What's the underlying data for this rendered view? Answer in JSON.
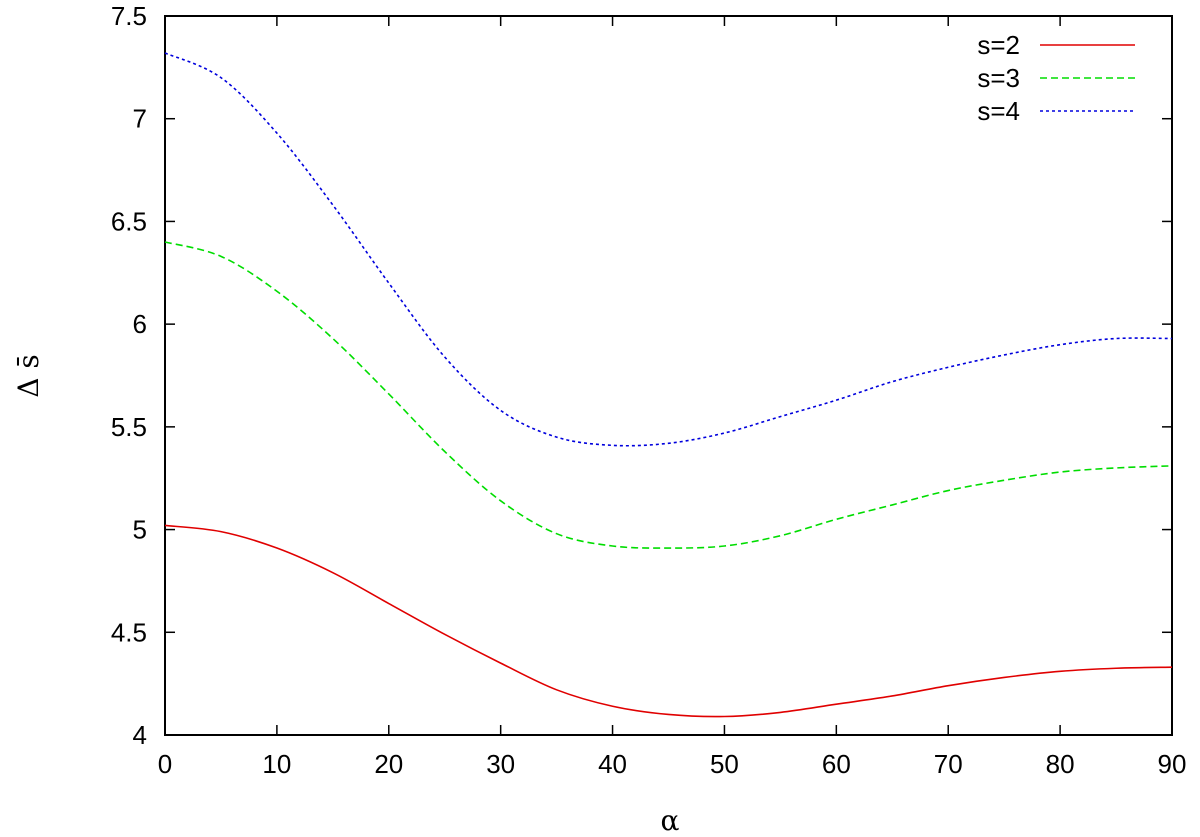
{
  "chart_data": {
    "type": "line",
    "title": "",
    "xlabel": "α",
    "ylabel": "Δ s̄",
    "xlim": [
      0,
      90
    ],
    "ylim": [
      4,
      7.5
    ],
    "xticks": [
      0,
      10,
      20,
      30,
      40,
      50,
      60,
      70,
      80,
      90
    ],
    "xtick_labels": [
      "0",
      "10",
      "20",
      "30",
      "40",
      "50",
      "60",
      "70",
      "80",
      "90"
    ],
    "yticks": [
      4,
      4.5,
      5,
      5.5,
      6,
      6.5,
      7,
      7.5
    ],
    "ytick_labels": [
      "4",
      "4.5",
      "5",
      "5.5",
      "6",
      "6.5",
      "7",
      "7.5"
    ],
    "grid": false,
    "legend_position": "top-right",
    "x": [
      0,
      5,
      10,
      15,
      20,
      25,
      30,
      35,
      40,
      45,
      50,
      55,
      60,
      65,
      70,
      75,
      80,
      85,
      90
    ],
    "series": [
      {
        "name": "s=2",
        "color": "#e00000",
        "dash": "solid",
        "values": [
          5.02,
          4.99,
          4.91,
          4.79,
          4.64,
          4.49,
          4.35,
          4.22,
          4.14,
          4.1,
          4.09,
          4.11,
          4.15,
          4.19,
          4.24,
          4.28,
          4.31,
          4.325,
          4.33
        ]
      },
      {
        "name": "s=3",
        "color": "#00dd00",
        "dash": "dashed",
        "values": [
          6.4,
          6.33,
          6.16,
          5.93,
          5.66,
          5.38,
          5.14,
          4.98,
          4.92,
          4.91,
          4.92,
          4.97,
          5.05,
          5.12,
          5.19,
          5.24,
          5.28,
          5.3,
          5.31
        ]
      },
      {
        "name": "s=4",
        "color": "#0000dd",
        "dash": "dotted",
        "values": [
          7.32,
          7.2,
          6.93,
          6.58,
          6.2,
          5.84,
          5.58,
          5.45,
          5.41,
          5.42,
          5.47,
          5.55,
          5.63,
          5.72,
          5.79,
          5.85,
          5.9,
          5.93,
          5.93
        ]
      }
    ]
  }
}
